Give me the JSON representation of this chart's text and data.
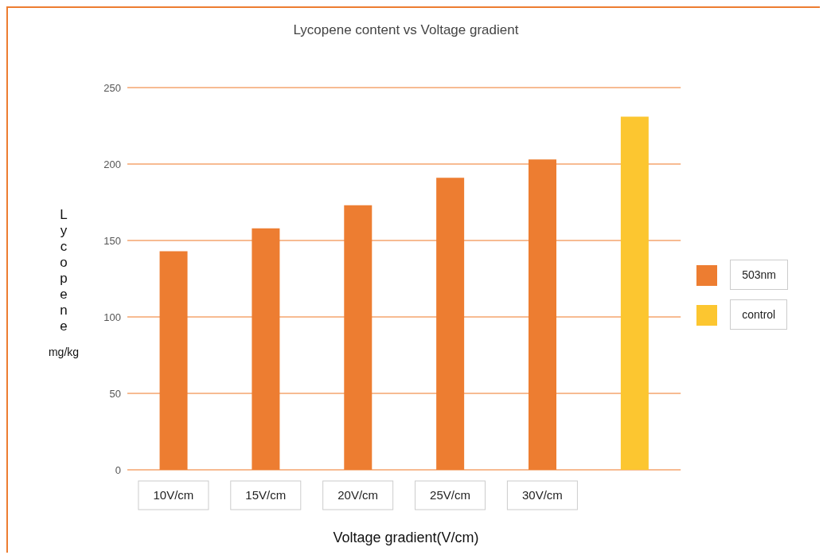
{
  "chart_data": {
    "type": "bar",
    "title": "Lycopene content vs Voltage gradient",
    "xlabel": "Voltage gradient(V/cm)",
    "ylabel": "Lycopene mg/kg",
    "categories": [
      "10V/cm",
      "15V/cm",
      "20V/cm",
      "25V/cm",
      "30V/cm",
      null
    ],
    "stacked": true,
    "series": [
      {
        "name": "503nm",
        "color": "#ed7d31",
        "values": [
          143,
          158,
          173,
          191,
          203,
          null
        ]
      },
      {
        "name": "control",
        "color": "#fcc630",
        "values": [
          null,
          null,
          null,
          null,
          null,
          231
        ]
      }
    ],
    "ylim": [
      0,
      250
    ],
    "yticks": [
      0,
      50,
      100,
      150,
      200,
      250
    ],
    "grid": "y",
    "legend": "right"
  }
}
